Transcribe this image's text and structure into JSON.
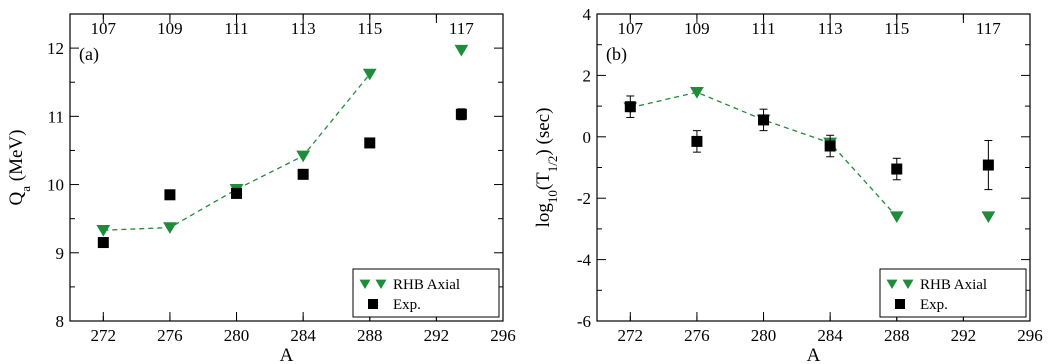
{
  "chart_data": [
    {
      "type": "scatter",
      "panel_label": "(a)",
      "xlabel": "A",
      "ylabel_main": "Q",
      "ylabel_sub": "a",
      "ylabel_unit": " (MeV)",
      "xlim": [
        270,
        296
      ],
      "ylim": [
        8,
        12.5
      ],
      "x_ticks": [
        272,
        276,
        280,
        284,
        288,
        292,
        296
      ],
      "y_ticks": [
        8,
        9,
        10,
        11,
        12
      ],
      "top_labels": [
        {
          "x": 272,
          "text": "107"
        },
        {
          "x": 276,
          "text": "109"
        },
        {
          "x": 280,
          "text": "111"
        },
        {
          "x": 284,
          "text": "113"
        },
        {
          "x": 288,
          "text": "115"
        },
        {
          "x": 293.5,
          "text": "117"
        }
      ],
      "series": [
        {
          "name": "RHB Axial",
          "marker": "triangle-down",
          "color": "#1e8c3a",
          "line": "dashed",
          "line_points": 5,
          "x": [
            272,
            276,
            280,
            284,
            288,
            293.5
          ],
          "y": [
            9.33,
            9.37,
            9.93,
            10.42,
            11.62,
            11.97
          ]
        },
        {
          "name": "Exp.",
          "marker": "square",
          "color": "#000000",
          "x": [
            272,
            276,
            280,
            284,
            288,
            293.5
          ],
          "y": [
            9.15,
            9.85,
            9.87,
            10.15,
            10.61,
            11.03
          ],
          "err": [
            0,
            0,
            0,
            0,
            0,
            0.08
          ]
        }
      ],
      "legend": {
        "position": "bottom-right",
        "entries": [
          "RHB Axial",
          "Exp."
        ]
      }
    },
    {
      "type": "scatter",
      "panel_label": "(b)",
      "xlabel": "A",
      "ylabel_main": "log",
      "ylabel_sub1": "10",
      "ylabel_mid": "(T",
      "ylabel_sub2": "1/2",
      "ylabel_unit": ") (sec)",
      "xlim": [
        270,
        296
      ],
      "ylim": [
        -6,
        4
      ],
      "x_ticks": [
        272,
        276,
        280,
        284,
        288,
        292,
        296
      ],
      "y_ticks": [
        -6,
        -4,
        -2,
        0,
        2,
        4
      ],
      "top_labels": [
        {
          "x": 272,
          "text": "107"
        },
        {
          "x": 276,
          "text": "109"
        },
        {
          "x": 280,
          "text": "111"
        },
        {
          "x": 284,
          "text": "113"
        },
        {
          "x": 288,
          "text": "115"
        },
        {
          "x": 293.5,
          "text": "117"
        }
      ],
      "series": [
        {
          "name": "RHB Axial",
          "marker": "triangle-down",
          "color": "#1e8c3a",
          "line": "dashed",
          "line_points": 5,
          "x": [
            272,
            276,
            280,
            284,
            288,
            293.5
          ],
          "y": [
            0.95,
            1.45,
            0.55,
            -0.2,
            -2.6,
            -2.6
          ]
        },
        {
          "name": "Exp.",
          "marker": "square",
          "color": "#000000",
          "x": [
            272,
            276,
            280,
            284,
            288,
            293.5
          ],
          "y": [
            0.98,
            -0.15,
            0.55,
            -0.3,
            -1.05,
            -0.92
          ],
          "err": [
            0.35,
            0.35,
            0.35,
            0.35,
            0.35,
            0.8
          ]
        }
      ],
      "legend": {
        "position": "bottom-right",
        "entries": [
          "RHB Axial",
          "Exp."
        ]
      }
    }
  ]
}
